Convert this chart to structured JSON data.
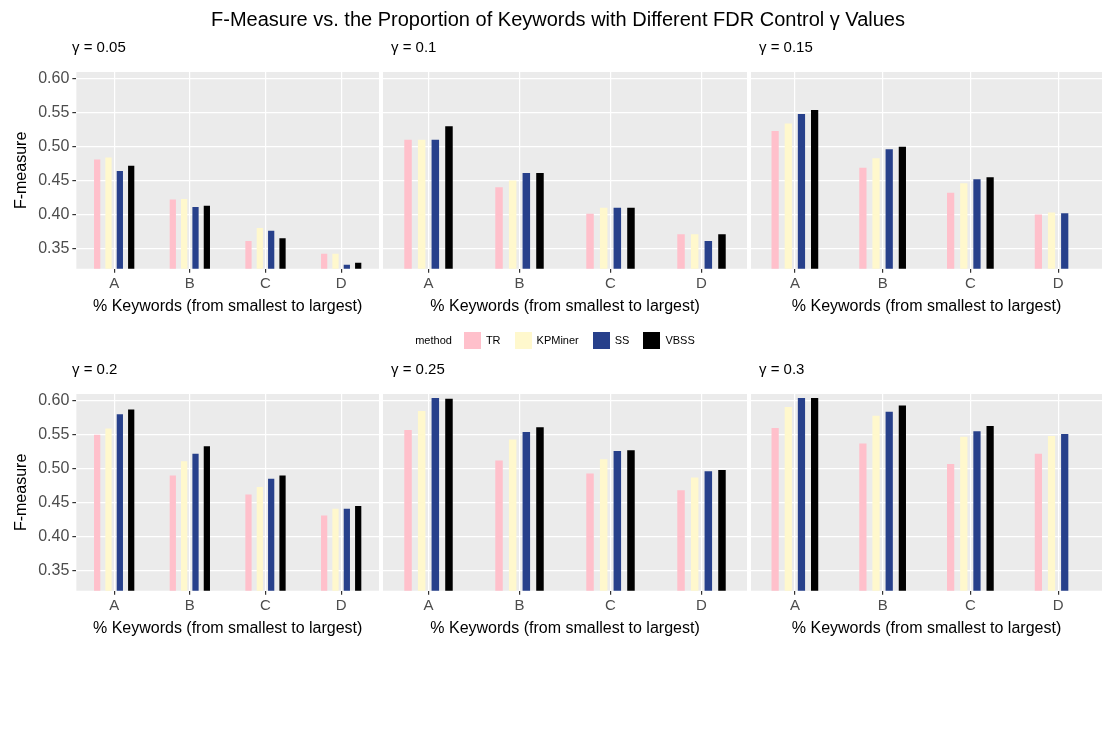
{
  "chart_data": [
    {
      "type": "bar",
      "title": "F-Measure vs. the Proportion of Keywords with Different FDR Control γ Values",
      "subtitle": "γ = 0.05",
      "xlabel": "% Keywords (from smallest to largest)",
      "ylabel": "F-measure",
      "categories": [
        "A",
        "B",
        "C",
        "D"
      ],
      "series": [
        {
          "name": "TR",
          "color": "#ffc0cb",
          "values": [
            0.481,
            0.422,
            0.361,
            0.342
          ]
        },
        {
          "name": "KPMiner",
          "color": "#fff8cd",
          "values": [
            0.484,
            0.423,
            0.38,
            0.342
          ]
        },
        {
          "name": "SS",
          "color": "#27408b",
          "values": [
            0.464,
            0.411,
            0.376,
            0.326
          ]
        },
        {
          "name": "VBSS",
          "color": "#000000",
          "values": [
            0.472,
            0.413,
            0.365,
            0.329
          ]
        }
      ],
      "ylim": [
        0.32,
        0.61
      ],
      "yticks": [
        {
          "value": 0.35,
          "label": "0.35"
        },
        {
          "value": 0.4,
          "label": "0.40"
        },
        {
          "value": 0.45,
          "label": "0.45"
        },
        {
          "value": 0.5,
          "label": "0.50"
        },
        {
          "value": 0.55,
          "label": "0.55"
        },
        {
          "value": 0.6,
          "label": "0.60"
        }
      ],
      "grid": true,
      "legend": "bottom",
      "legend_title": "method"
    },
    {
      "type": "bar",
      "subtitle": "γ = 0.1",
      "xlabel": "% Keywords (from smallest to largest)",
      "categories": [
        "A",
        "B",
        "C",
        "D"
      ],
      "series": [
        {
          "color": "#ffc0cb",
          "values": [
            0.51,
            0.44,
            0.401,
            0.371
          ]
        },
        {
          "color": "#fff8cd",
          "values": [
            0.51,
            0.45,
            0.41,
            0.371
          ]
        },
        {
          "color": "#27408b",
          "values": [
            0.51,
            0.461,
            0.41,
            0.361
          ]
        },
        {
          "color": "#000000",
          "values": [
            0.53,
            0.461,
            0.41,
            0.371
          ]
        }
      ],
      "ylim": [
        0.32,
        0.61
      ],
      "yticks": [
        {
          "value": 0.35,
          "label": null
        },
        {
          "value": 0.4,
          "label": null
        },
        {
          "value": 0.45,
          "label": null
        },
        {
          "value": 0.5,
          "label": null
        },
        {
          "value": 0.55,
          "label": null
        },
        {
          "value": 0.6,
          "label": null
        }
      ],
      "grid": true,
      "tick_labels": "x"
    },
    {
      "type": "bar",
      "subtitle": "γ = 0.15",
      "xlabel": "% Keywords (from smallest to largest)",
      "categories": [
        "A",
        "B",
        "C",
        "D"
      ],
      "series": [
        {
          "color": "#ffc0cb",
          "values": [
            0.523,
            0.469,
            0.432,
            0.4
          ]
        },
        {
          "color": "#fff8cd",
          "values": [
            0.534,
            0.483,
            0.446,
            0.403
          ]
        },
        {
          "color": "#27408b",
          "values": [
            0.548,
            0.496,
            0.452,
            0.402
          ]
        },
        {
          "color": "#000000",
          "values": [
            0.554,
            0.5,
            0.455,
            null
          ]
        }
      ],
      "ylim": [
        0.32,
        0.61
      ],
      "yticks": [
        {
          "value": 0.35,
          "label": null
        },
        {
          "value": 0.4,
          "label": null
        },
        {
          "value": 0.45,
          "label": null
        },
        {
          "value": 0.5,
          "label": null
        },
        {
          "value": 0.55,
          "label": null
        },
        {
          "value": 0.6,
          "label": null
        }
      ],
      "grid": true,
      "tick_labels": "x"
    },
    {
      "type": "bar",
      "subtitle": "γ = 0.2",
      "xlabel": "% Keywords (from smallest to largest)",
      "ylabel": "F-measure",
      "categories": [
        "A",
        "B",
        "C",
        "D"
      ],
      "series": [
        {
          "color": "#ffc0cb",
          "values": [
            0.55,
            0.49,
            0.462,
            0.431
          ]
        },
        {
          "color": "#fff8cd",
          "values": [
            0.559,
            0.511,
            0.473,
            0.441
          ]
        },
        {
          "color": "#27408b",
          "values": [
            0.58,
            0.522,
            0.485,
            0.441
          ]
        },
        {
          "color": "#000000",
          "values": [
            0.587,
            0.533,
            0.49,
            0.445
          ]
        }
      ],
      "ylim": [
        0.32,
        0.61
      ],
      "yticks": [
        {
          "value": 0.35,
          "label": "0.35"
        },
        {
          "value": 0.4,
          "label": "0.40"
        },
        {
          "value": 0.45,
          "label": "0.45"
        },
        {
          "value": 0.5,
          "label": "0.50"
        },
        {
          "value": 0.55,
          "label": "0.55"
        },
        {
          "value": 0.6,
          "label": "0.60"
        }
      ],
      "grid": true
    },
    {
      "type": "bar",
      "subtitle": "γ = 0.25",
      "xlabel": "% Keywords (from smallest to largest)",
      "categories": [
        "A",
        "B",
        "C",
        "D"
      ],
      "series": [
        {
          "color": "#ffc0cb",
          "values": [
            0.557,
            0.512,
            0.493,
            0.468
          ]
        },
        {
          "color": "#fff8cd",
          "values": [
            0.585,
            0.543,
            0.514,
            0.487
          ]
        },
        {
          "color": "#27408b",
          "values": [
            0.604,
            0.554,
            0.526,
            0.496
          ]
        },
        {
          "color": "#000000",
          "values": [
            0.603,
            0.561,
            0.527,
            0.498
          ]
        }
      ],
      "ylim": [
        0.32,
        0.61
      ],
      "yticks": [
        {
          "value": 0.35,
          "label": null
        },
        {
          "value": 0.4,
          "label": null
        },
        {
          "value": 0.45,
          "label": null
        },
        {
          "value": 0.5,
          "label": null
        },
        {
          "value": 0.55,
          "label": null
        },
        {
          "value": 0.6,
          "label": null
        }
      ],
      "grid": true,
      "tick_labels": "x"
    },
    {
      "type": "bar",
      "subtitle": "γ = 0.3",
      "xlabel": "% Keywords (from smallest to largest)",
      "categories": [
        "A",
        "B",
        "C",
        "D"
      ],
      "series": [
        {
          "color": "#ffc0cb",
          "values": [
            0.56,
            0.537,
            0.507,
            0.522
          ]
        },
        {
          "color": "#fff8cd",
          "values": [
            0.591,
            0.578,
            0.547,
            0.548
          ]
        },
        {
          "color": "#27408b",
          "values": [
            0.604,
            0.584,
            0.555,
            0.551
          ]
        },
        {
          "color": "#000000",
          "values": [
            0.604,
            0.593,
            0.563,
            null
          ]
        }
      ],
      "ylim": [
        0.32,
        0.61
      ],
      "yticks": [
        {
          "value": 0.35,
          "label": null
        },
        {
          "value": 0.4,
          "label": null
        },
        {
          "value": 0.45,
          "label": null
        },
        {
          "value": 0.5,
          "label": null
        },
        {
          "value": 0.55,
          "label": null
        },
        {
          "value": 0.6,
          "label": null
        }
      ],
      "grid": true,
      "tick_labels": "x"
    }
  ]
}
